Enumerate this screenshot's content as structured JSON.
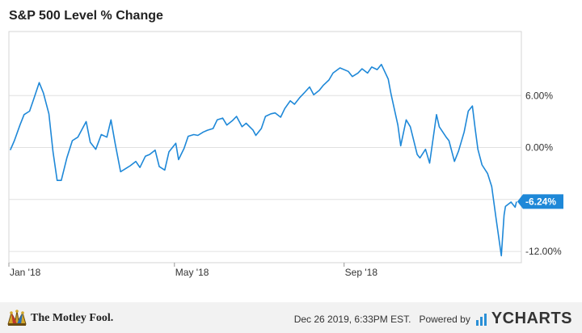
{
  "chart_data": {
    "type": "line",
    "title": "S&P 500 Level % Change",
    "x_tick_labels": [
      "Jan '18",
      "May '18",
      "Sep '18"
    ],
    "y_tick_labels": [
      "6.00%",
      "0.00%",
      "-6.00%",
      "-12.00%"
    ],
    "y_ticks": [
      6,
      0,
      -6,
      -12
    ],
    "ylim": [
      -13.3,
      13.4
    ],
    "series": [
      {
        "color": "#1e88d8",
        "x": [
          "2018-01-02",
          "2018-01-05",
          "2018-01-09",
          "2018-01-12",
          "2018-01-16",
          "2018-01-19",
          "2018-01-23",
          "2018-01-26",
          "2018-01-30",
          "2018-02-02",
          "2018-02-05",
          "2018-02-08",
          "2018-02-12",
          "2018-02-16",
          "2018-02-20",
          "2018-02-26",
          "2018-03-01",
          "2018-03-05",
          "2018-03-09",
          "2018-03-13",
          "2018-03-16",
          "2018-03-19",
          "2018-03-23",
          "2018-03-27",
          "2018-03-30",
          "2018-04-03",
          "2018-04-06",
          "2018-04-10",
          "2018-04-13",
          "2018-04-17",
          "2018-04-20",
          "2018-04-24",
          "2018-04-27",
          "2018-05-02",
          "2018-05-04",
          "2018-05-08",
          "2018-05-11",
          "2018-05-15",
          "2018-05-18",
          "2018-05-22",
          "2018-05-25",
          "2018-05-29",
          "2018-06-01",
          "2018-06-05",
          "2018-06-08",
          "2018-06-12",
          "2018-06-15",
          "2018-06-19",
          "2018-06-22",
          "2018-06-27",
          "2018-06-29",
          "2018-07-03",
          "2018-07-06",
          "2018-07-10",
          "2018-07-13",
          "2018-07-17",
          "2018-07-20",
          "2018-07-24",
          "2018-07-27",
          "2018-07-31",
          "2018-08-03",
          "2018-08-07",
          "2018-08-10",
          "2018-08-14",
          "2018-08-17",
          "2018-08-21",
          "2018-08-24",
          "2018-08-29",
          "2018-09-04",
          "2018-09-07",
          "2018-09-11",
          "2018-09-14",
          "2018-09-18",
          "2018-09-21",
          "2018-09-25",
          "2018-09-28",
          "2018-10-03",
          "2018-10-05",
          "2018-10-10",
          "2018-10-12",
          "2018-10-16",
          "2018-10-19",
          "2018-10-24",
          "2018-10-26",
          "2018-10-30",
          "2018-11-02",
          "2018-11-07",
          "2018-11-09",
          "2018-11-14",
          "2018-11-16",
          "2018-11-20",
          "2018-11-23",
          "2018-11-27",
          "2018-11-30",
          "2018-12-03",
          "2018-12-05",
          "2018-12-07",
          "2018-12-10",
          "2018-12-14",
          "2018-12-17",
          "2018-12-20",
          "2018-12-24",
          "2018-12-26",
          "2018-12-27",
          "2018-12-31",
          "2019-01-03",
          "2019-01-04"
        ],
        "y": [
          -0.3,
          0.8,
          2.6,
          3.8,
          4.2,
          5.6,
          7.5,
          6.3,
          3.9,
          -0.5,
          -3.8,
          -3.8,
          -1.2,
          0.8,
          1.2,
          3.0,
          0.6,
          -0.2,
          1.5,
          1.2,
          3.2,
          0.5,
          -2.8,
          -2.4,
          -2.1,
          -1.6,
          -2.3,
          -1.0,
          -0.8,
          -0.3,
          -2.2,
          -2.6,
          -0.5,
          0.5,
          -1.4,
          -0.1,
          1.3,
          1.5,
          1.4,
          1.8,
          2.0,
          2.2,
          3.2,
          3.4,
          2.6,
          3.1,
          3.6,
          2.4,
          2.8,
          2.0,
          1.4,
          2.2,
          3.6,
          3.9,
          4.0,
          3.5,
          4.5,
          5.4,
          5.0,
          5.8,
          6.3,
          7.0,
          6.1,
          6.6,
          7.2,
          7.8,
          8.6,
          9.2,
          8.8,
          8.2,
          8.6,
          9.1,
          8.6,
          9.3,
          9.0,
          9.6,
          7.9,
          6.2,
          2.6,
          0.2,
          3.2,
          2.4,
          -0.8,
          -1.2,
          -0.2,
          -1.8,
          3.8,
          2.4,
          1.2,
          0.8,
          -1.6,
          -0.4,
          1.8,
          4.2,
          4.8,
          2.2,
          -0.2,
          -2.0,
          -3.0,
          -4.5,
          -8.0,
          -12.5,
          -7.8,
          -6.8,
          -6.3,
          -6.9,
          -6.24
        ]
      }
    ],
    "last_value_label": "-6.24%"
  },
  "footer": {
    "brand": "The Motley Fool.",
    "timestamp": "Dec 26 2019, 6:33PM EST.",
    "powered_by": "Powered by",
    "vendor": "YCHARTS"
  },
  "colors": {
    "line": "#1e88d8",
    "label_bg": "#1e88d8",
    "grid": "#e0e0e0",
    "footer_bg": "#f2f2f2"
  }
}
